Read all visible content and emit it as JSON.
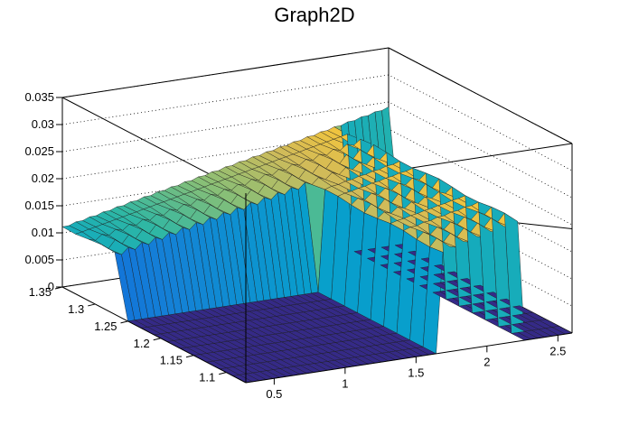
{
  "chart_data": {
    "type": "surface",
    "title": "Graph2D",
    "x_axis": {
      "range": [
        0.3,
        2.6
      ],
      "ticks": [
        0.5,
        1,
        1.5,
        2,
        2.5
      ],
      "tick_labels": [
        "0.5",
        "1",
        "1.5",
        "2",
        "2.5"
      ]
    },
    "y_axis": {
      "range": [
        1.07,
        1.35
      ],
      "ticks": [
        1.1,
        1.15,
        1.2,
        1.25,
        1.3,
        1.35
      ],
      "tick_labels": [
        "1.1",
        "1.15",
        "1.2",
        "1.25",
        "1.3",
        "1.35"
      ]
    },
    "z_axis": {
      "range": [
        0,
        0.035
      ],
      "ticks": [
        0,
        0.005,
        0.01,
        0.015,
        0.02,
        0.025,
        0.03,
        0.035
      ],
      "tick_labels": [
        "0",
        "0.005",
        "0.01",
        "0.015",
        "0.02",
        "0.025",
        "0.03",
        "0.035"
      ]
    },
    "grid": true,
    "surface": {
      "x_min": 0.3,
      "x_max": 2.6,
      "y_min": 1.07,
      "y_max": 1.35,
      "nx": 48,
      "ny": 14,
      "z_at_x_min": 0.011,
      "z_at_x_max": 0.024,
      "front_zero_band": {
        "x_start": 0.3,
        "x_end": 1.65,
        "y_start": 1.07,
        "y_end": 1.25
      },
      "drop_zone": {
        "x_start": 2.25,
        "x_end": 2.6
      },
      "ripple_amplitude": 0.0006
    },
    "palette": [
      "#352a87",
      "#0f5cdd",
      "#1481d6",
      "#06a4ca",
      "#2eb7a4",
      "#87bf77",
      "#d1bb59",
      "#fec832",
      "#f9fb0e"
    ]
  }
}
